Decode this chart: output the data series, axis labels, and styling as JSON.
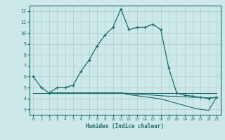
{
  "xlabel": "Humidex (Indice chaleur)",
  "xlim": [
    -0.5,
    23.5
  ],
  "ylim": [
    2.5,
    12.5
  ],
  "yticks": [
    3,
    4,
    5,
    6,
    7,
    8,
    9,
    10,
    11,
    12
  ],
  "xticks": [
    0,
    1,
    2,
    3,
    4,
    5,
    6,
    7,
    8,
    9,
    10,
    11,
    12,
    13,
    14,
    15,
    16,
    17,
    18,
    19,
    20,
    21,
    22,
    23
  ],
  "bg_color": "#cde8e8",
  "grid_color": "#b0d0d0",
  "line_color": "#1a6b6b",
  "line1_x": [
    0,
    1,
    2,
    3,
    4,
    5,
    6,
    7,
    8,
    9,
    10,
    11,
    12,
    13,
    14,
    15,
    16,
    17,
    18,
    19,
    20,
    21,
    22,
    23
  ],
  "line1_y": [
    6.0,
    5.0,
    4.5,
    5.0,
    5.0,
    5.2,
    6.5,
    7.5,
    8.8,
    9.8,
    10.5,
    12.2,
    10.3,
    10.5,
    10.5,
    10.8,
    10.3,
    6.8,
    4.5,
    4.3,
    4.2,
    4.1,
    4.0,
    4.1
  ],
  "line2_x": [
    0,
    1,
    2,
    3,
    4,
    5,
    6,
    7,
    8,
    9,
    10,
    11,
    12,
    13,
    14,
    15,
    16,
    17,
    18,
    19,
    20,
    21,
    22,
    23
  ],
  "line2_y": [
    4.5,
    4.5,
    4.5,
    4.5,
    4.5,
    4.5,
    4.5,
    4.5,
    4.5,
    4.5,
    4.5,
    4.5,
    4.5,
    4.5,
    4.5,
    4.5,
    4.5,
    4.5,
    4.5,
    4.5,
    4.5,
    4.5,
    4.5,
    4.5
  ],
  "line3_x": [
    2,
    3,
    4,
    5,
    6,
    7,
    8,
    9,
    10,
    11,
    12,
    13,
    14,
    15,
    16,
    17,
    18,
    19,
    20,
    21,
    22,
    23
  ],
  "line3_y": [
    4.5,
    4.5,
    4.5,
    4.5,
    4.5,
    4.5,
    4.5,
    4.5,
    4.5,
    4.5,
    4.35,
    4.25,
    4.15,
    4.05,
    3.95,
    3.75,
    3.55,
    3.35,
    3.15,
    3.0,
    2.9,
    4.1
  ],
  "line4_x": [
    2,
    3,
    4,
    5,
    6,
    7,
    8,
    9,
    10,
    11,
    12,
    13,
    14,
    15,
    16,
    17,
    18,
    19,
    20,
    21,
    22,
    23
  ],
  "line4_y": [
    4.5,
    4.5,
    4.5,
    4.5,
    4.5,
    4.5,
    4.5,
    4.5,
    4.5,
    4.5,
    4.45,
    4.4,
    4.35,
    4.3,
    4.25,
    4.2,
    4.2,
    4.15,
    4.1,
    4.1,
    4.05,
    4.1
  ]
}
